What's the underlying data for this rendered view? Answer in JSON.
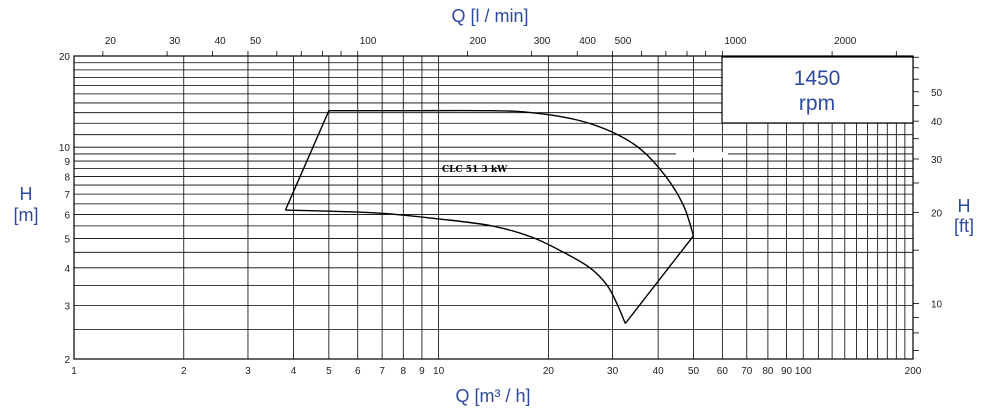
{
  "chart_data": {
    "type": "line",
    "title": "",
    "x_axis_bottom": {
      "label": "Q [m³ / h]",
      "scale": "log",
      "range": [
        1,
        200
      ],
      "tick_labels": [
        "1",
        "2",
        "3",
        "4",
        "5",
        "6",
        "7",
        "8",
        "9",
        "10",
        "20",
        "30",
        "40",
        "50",
        "60",
        "70",
        "80",
        "90",
        "100",
        "200"
      ]
    },
    "x_axis_top": {
      "label": "Q [l / min]",
      "scale": "log",
      "range": [
        16.67,
        3333
      ],
      "tick_labels": [
        "20",
        "30",
        "40",
        "50",
        "100",
        "200",
        "300",
        "400",
        "500",
        "1000",
        "2000"
      ]
    },
    "y_axis_left": {
      "label_top": "H",
      "label_bottom": "[m]",
      "scale": "log",
      "range": [
        2,
        20
      ],
      "tick_labels": [
        "2",
        "3",
        "4",
        "5",
        "6",
        "7",
        "8",
        "9",
        "10",
        "20"
      ]
    },
    "y_axis_right": {
      "label_top": "H",
      "label_bottom": "[ft]",
      "scale": "log",
      "range": [
        6.56,
        65.6
      ],
      "tick_labels": [
        "10",
        "20",
        "30",
        "40",
        "50"
      ]
    },
    "rpm_box": {
      "value": "1450",
      "unit": "rpm"
    },
    "curve_label": "CLC 51 3 kW",
    "series": [
      {
        "upper_curve": [
          [
            5,
            13.2
          ],
          [
            8,
            13.2
          ],
          [
            14,
            13.2
          ],
          [
            18,
            13.0
          ],
          [
            24,
            12.3
          ],
          [
            30,
            11.2
          ],
          [
            36,
            9.8
          ],
          [
            42,
            8.0
          ],
          [
            47,
            6.4
          ],
          [
            50,
            5.1
          ]
        ],
        "lower_curve": [
          [
            3.8,
            6.2
          ],
          [
            5,
            6.15
          ],
          [
            7,
            6.05
          ],
          [
            10,
            5.8
          ],
          [
            14,
            5.5
          ],
          [
            18,
            5.05
          ],
          [
            22,
            4.5
          ],
          [
            26,
            4.0
          ],
          [
            29,
            3.5
          ],
          [
            31,
            3.0
          ],
          [
            32.5,
            2.62
          ]
        ],
        "left_edge": [
          [
            3.8,
            6.2
          ],
          [
            5,
            13.2
          ]
        ],
        "right_edge": [
          [
            32.5,
            2.62
          ],
          [
            50,
            5.1
          ]
        ]
      }
    ],
    "grid": true,
    "colors": {
      "labels": "#2e4a9e",
      "grid": "#000000",
      "curve": "#000000"
    }
  }
}
